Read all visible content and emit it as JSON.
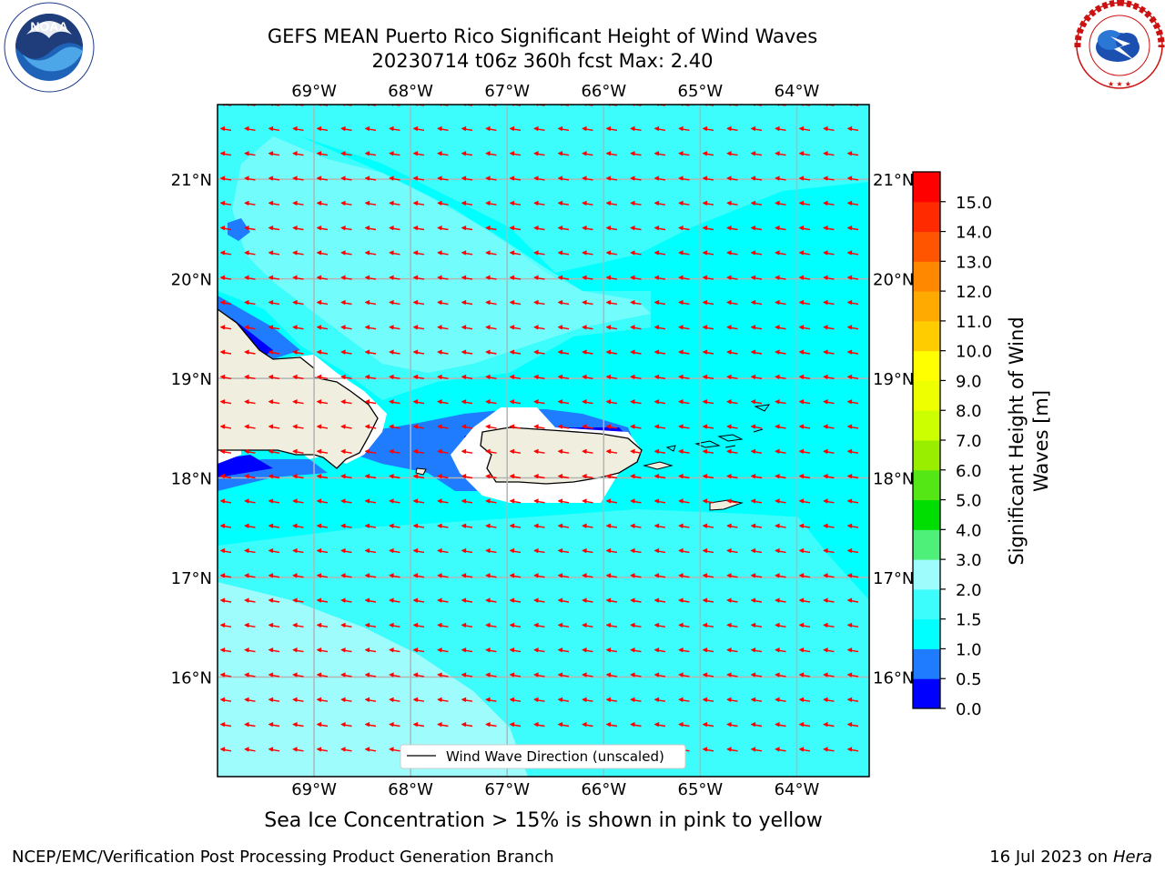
{
  "title": {
    "line1": "GEFS MEAN Puerto Rico Significant Height of Wind Waves",
    "line2": "20230714 t06z 360h fcst   Max: 2.40"
  },
  "map": {
    "lon_labels": [
      "69°W",
      "68°W",
      "67°W",
      "66°W",
      "65°W",
      "64°W"
    ],
    "lat_labels": [
      "21°N",
      "20°N",
      "19°N",
      "18°N",
      "17°N",
      "16°N"
    ],
    "lon_range": [
      -70.0,
      -63.25
    ],
    "lat_range": [
      15.0,
      21.75
    ],
    "legend_label": "Wind Wave Direction (unscaled)",
    "colors": {
      "ocean_0_5_1_0": "#1f7cff",
      "ocean_1_0_1_5": "#00ffff",
      "ocean_1_5_2_0": "#3dfcfc",
      "ocean_2_0_3_0": "#9ffcfc",
      "land": "#efeedf",
      "arrow": "#ff0000"
    }
  },
  "colorbar": {
    "label": "Significant Height of Wind Waves [m]",
    "label_line1": "Significant Height of Wind",
    "label_line2": "Waves [m]",
    "ticks": [
      "0.0",
      "0.5",
      "1.0",
      "1.5",
      "2.0",
      "3.0",
      "4.0",
      "5.0",
      "6.0",
      "7.0",
      "8.0",
      "9.0",
      "10.0",
      "11.0",
      "12.0",
      "13.0",
      "14.0",
      "15.0"
    ],
    "colors": [
      "#0000ff",
      "#1f7cff",
      "#00ffff",
      "#3dfcfc",
      "#9ffcfc",
      "#4ff07a",
      "#00dd00",
      "#55e615",
      "#99ee00",
      "#ccff00",
      "#eeff00",
      "#ffff00",
      "#ffcc00",
      "#ffaa00",
      "#ff8800",
      "#ff5500",
      "#ff2a00",
      "#ff0000"
    ]
  },
  "subcaption": "Sea Ice Concentration > 15% is shown in pink to yellow",
  "footer": {
    "left": "NCEP/EMC/Verification Post Processing Product Generation Branch",
    "right_date": "16 Jul 2023 on ",
    "right_host": "Hera"
  },
  "logos": {
    "left": "NOAA",
    "right": "NATIONAL WEATHER SERVICE"
  }
}
